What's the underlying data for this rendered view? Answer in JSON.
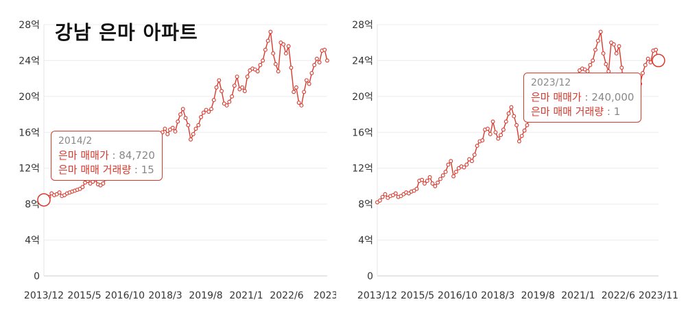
{
  "title": "강남 은마 아파트",
  "chart_data": [
    {
      "type": "line",
      "ylabel": "",
      "xlabel": "",
      "yticks": [
        "0",
        "4억",
        "8억",
        "12억",
        "16억",
        "20억",
        "24억",
        "28억"
      ],
      "ylim": [
        0,
        280000
      ],
      "xticks": [
        "2013/12",
        "2015/5",
        "2016/10",
        "2018/3",
        "2019/8",
        "2021/1",
        "2022/6",
        "2023/"
      ],
      "grid": "horizontal",
      "color": "#d9372a",
      "series": [
        {
          "values": [
            84720,
            86000,
            88000,
            92000,
            90000,
            91000,
            93000,
            89000,
            90000,
            92000,
            93000,
            94000,
            95000,
            96000,
            97000,
            99000,
            104000,
            106000,
            103000,
            105000,
            107000,
            102000,
            101000,
            103000,
            108000,
            110000,
            112000,
            115000,
            118000,
            120000,
            122000,
            118000,
            112000,
            116000,
            119000,
            121000,
            123000,
            126000,
            130000,
            128000,
            124000,
            132000,
            138000,
            144000,
            150000,
            155000,
            160000,
            164000,
            158000,
            163000,
            165000,
            161000,
            172000,
            180000,
            186000,
            176000,
            168000,
            152000,
            158000,
            164000,
            168000,
            177000,
            182000,
            185000,
            183000,
            186000,
            196000,
            210000,
            218000,
            206000,
            192000,
            190000,
            194000,
            200000,
            212000,
            222000,
            208000,
            210000,
            206000,
            222000,
            229000,
            231000,
            230000,
            228000,
            235000,
            240000,
            252000,
            262000,
            272000,
            248000,
            236000,
            228000,
            260000,
            258000,
            248000,
            256000,
            232000,
            205000,
            210000,
            193000,
            190000,
            205000,
            218000,
            214000,
            226000,
            235000,
            242000,
            238000,
            251000,
            252000,
            240000
          ]
        }
      ],
      "tooltip": {
        "date": "2014/2",
        "price_label": "은마 매매가",
        "price_value": "84,720",
        "volume_label": "은마 매매 거래량",
        "volume_value": "15",
        "highlight_index": 0
      }
    },
    {
      "type": "line",
      "ylabel": "",
      "xlabel": "",
      "yticks": [
        "0",
        "4억",
        "8억",
        "12억",
        "16억",
        "20억",
        "24억",
        "28억"
      ],
      "ylim": [
        0,
        280000
      ],
      "xticks": [
        "2013/12",
        "2015/5",
        "2016/10",
        "2018/3",
        "2019/8",
        "2021/1",
        "2022/6",
        "2023/11"
      ],
      "grid": "horizontal",
      "color": "#d9372a",
      "series": [
        {
          "values": [
            82000,
            84000,
            88000,
            91000,
            87000,
            89000,
            90000,
            92000,
            88000,
            89000,
            91000,
            93000,
            92000,
            94000,
            95000,
            97000,
            106000,
            107000,
            103000,
            106000,
            110000,
            103000,
            100000,
            104000,
            108000,
            112000,
            116000,
            124000,
            128000,
            111000,
            116000,
            120000,
            122000,
            121000,
            124000,
            130000,
            128000,
            135000,
            145000,
            150000,
            151000,
            163000,
            164000,
            158000,
            172000,
            160000,
            153000,
            157000,
            163000,
            172000,
            181000,
            188000,
            178000,
            168000,
            150000,
            156000,
            162000,
            168000,
            178000,
            182000,
            185000,
            183000,
            186000,
            196000,
            210000,
            218000,
            206000,
            192000,
            190000,
            194000,
            200000,
            212000,
            222000,
            208000,
            210000,
            206000,
            222000,
            229000,
            231000,
            230000,
            228000,
            235000,
            240000,
            252000,
            262000,
            272000,
            248000,
            236000,
            228000,
            260000,
            258000,
            248000,
            256000,
            232000,
            205000,
            210000,
            193000,
            190000,
            205000,
            218000,
            214000,
            226000,
            235000,
            242000,
            238000,
            251000,
            252000,
            240000
          ]
        }
      ],
      "tooltip": {
        "date": "2023/12",
        "price_label": "은마 매매가",
        "price_value": "240,000",
        "volume_label": "은마 매매 거래량",
        "volume_value": "1",
        "highlight_index": -1
      }
    }
  ]
}
